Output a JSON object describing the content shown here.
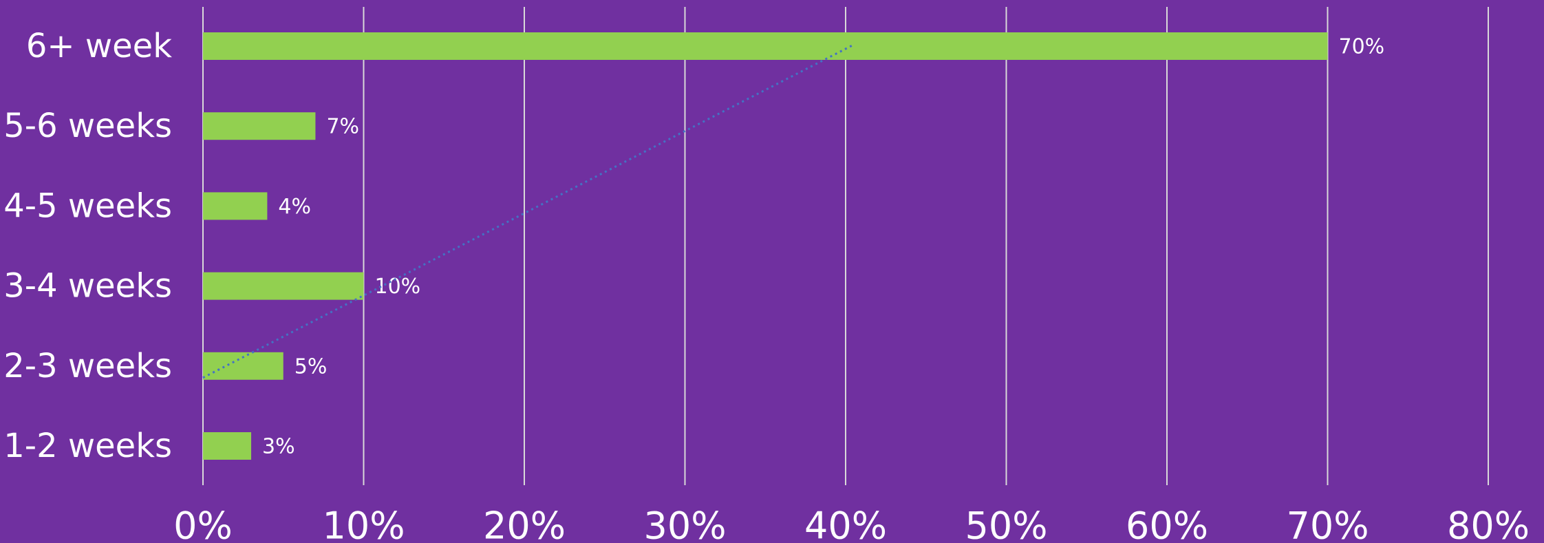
{
  "chart_data": {
    "type": "bar",
    "orientation": "horizontal",
    "categories": [
      "6+ week",
      "5-6 weeks",
      "4-5 weeks",
      "3-4 weeks",
      "2-3 weeks",
      "1-2 weeks"
    ],
    "values": [
      70,
      7,
      4,
      10,
      5,
      3
    ],
    "data_labels": [
      "70%",
      "7%",
      "4%",
      "10%",
      "5%",
      "3%"
    ],
    "xlim": [
      0,
      80
    ],
    "x_ticks": [
      0,
      10,
      20,
      30,
      40,
      50,
      60,
      70,
      80
    ],
    "x_tick_labels": [
      "0%",
      "10%",
      "20%",
      "30%",
      "40%",
      "50%",
      "60%",
      "70%",
      "80%"
    ],
    "title": "",
    "xlabel": "",
    "ylabel": "",
    "grid": "vertical",
    "legend": "none",
    "trendline": {
      "style": "dotted",
      "from": {
        "category": "2-3 weeks",
        "value": 0
      },
      "to": {
        "category": "6+ week",
        "value": 40.5
      }
    },
    "colors": {
      "background": "#7030a0",
      "bar": "#92d050",
      "gridline": "#d9d9d9",
      "trendline": "#4472c4",
      "text": "#ffffff"
    }
  }
}
